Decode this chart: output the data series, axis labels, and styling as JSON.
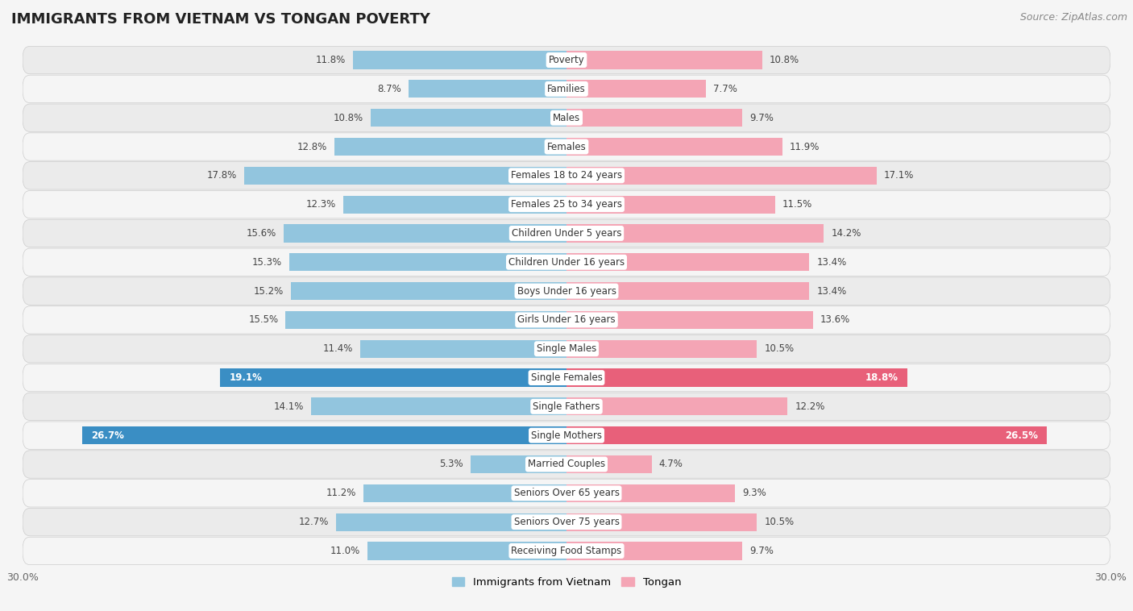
{
  "title": "IMMIGRANTS FROM VIETNAM VS TONGAN POVERTY",
  "source": "Source: ZipAtlas.com",
  "categories": [
    "Poverty",
    "Families",
    "Males",
    "Females",
    "Females 18 to 24 years",
    "Females 25 to 34 years",
    "Children Under 5 years",
    "Children Under 16 years",
    "Boys Under 16 years",
    "Girls Under 16 years",
    "Single Males",
    "Single Females",
    "Single Fathers",
    "Single Mothers",
    "Married Couples",
    "Seniors Over 65 years",
    "Seniors Over 75 years",
    "Receiving Food Stamps"
  ],
  "left_values": [
    11.8,
    8.7,
    10.8,
    12.8,
    17.8,
    12.3,
    15.6,
    15.3,
    15.2,
    15.5,
    11.4,
    19.1,
    14.1,
    26.7,
    5.3,
    11.2,
    12.7,
    11.0
  ],
  "right_values": [
    10.8,
    7.7,
    9.7,
    11.9,
    17.1,
    11.5,
    14.2,
    13.4,
    13.4,
    13.6,
    10.5,
    18.8,
    12.2,
    26.5,
    4.7,
    9.3,
    10.5,
    9.7
  ],
  "left_color": "#92c5de",
  "right_color": "#f4a5b5",
  "left_highlight_color": "#3a8ec4",
  "right_highlight_color": "#e8607a",
  "highlight_indices": [
    11,
    13
  ],
  "left_label": "Immigrants from Vietnam",
  "right_label": "Tongan",
  "xlim": 30.0,
  "row_bg_white": "#f0f0f0",
  "row_bg_gray": "#e0e0e0",
  "title_fontsize": 13,
  "source_fontsize": 9,
  "bar_height": 0.62,
  "label_fontsize": 8.5,
  "value_fontsize": 8.5
}
